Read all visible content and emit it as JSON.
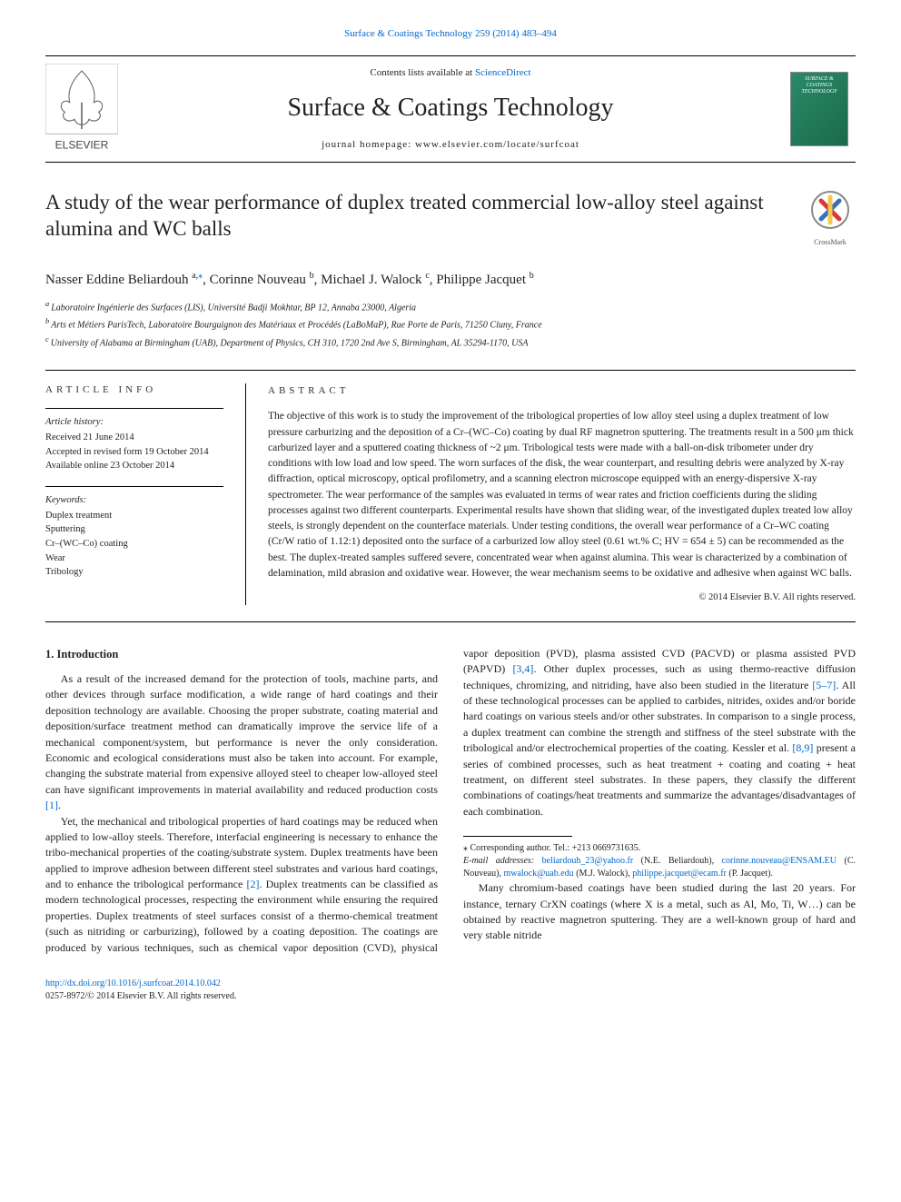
{
  "top_citation": "Surface & Coatings Technology 259 (2014) 483–494",
  "masthead": {
    "contents_prefix": "Contents lists available at ",
    "contents_link": "ScienceDirect",
    "journal_title": "Surface & Coatings Technology",
    "homepage_prefix": "journal homepage: ",
    "homepage_url": "www.elsevier.com/locate/surfcoat",
    "publisher_name": "ELSEVIER",
    "cover_text": "SURFACE & COATINGS TECHNOLOGY"
  },
  "article": {
    "title": "A study of the wear performance of duplex treated commercial low-alloy steel against alumina and WC balls",
    "crossmark_label": "CrossMark",
    "authors_html_parts": [
      {
        "name": "Nasser Eddine Beliardouh",
        "aff": "a,",
        "corr": true
      },
      {
        "name": "Corinne Nouveau",
        "aff": "b"
      },
      {
        "name": "Michael J. Walock",
        "aff": "c"
      },
      {
        "name": "Philippe Jacquet",
        "aff": "b"
      }
    ],
    "affiliations": [
      {
        "key": "a",
        "text": "Laboratoire Ingénierie des Surfaces (LIS), Université Badji Mokhtar, BP 12, Annaba 23000, Algeria"
      },
      {
        "key": "b",
        "text": "Arts et Métiers ParisTech, Laboratoire Bourguignon des Matériaux et Procédés (LaBoMaP), Rue Porte de Paris, 71250 Cluny, France"
      },
      {
        "key": "c",
        "text": "University of Alabama at Birmingham (UAB), Department of Physics, CH 310, 1720 2nd Ave S, Birmingham, AL 35294-1170, USA"
      }
    ]
  },
  "info": {
    "label": "article info",
    "history_title": "Article history:",
    "history": [
      "Received 21 June 2014",
      "Accepted in revised form 19 October 2014",
      "Available online 23 October 2014"
    ],
    "keywords_title": "Keywords:",
    "keywords": [
      "Duplex treatment",
      "Sputtering",
      "Cr–(WC–Co) coating",
      "Wear",
      "Tribology"
    ]
  },
  "abstract": {
    "label": "abstract",
    "text": "The objective of this work is to study the improvement of the tribological properties of low alloy steel using a duplex treatment of low pressure carburizing and the deposition of a Cr–(WC–Co) coating by dual RF magnetron sputtering. The treatments result in a 500 μm thick carburized layer and a sputtered coating thickness of ~2 μm. Tribological tests were made with a ball-on-disk tribometer under dry conditions with low load and low speed. The worn surfaces of the disk, the wear counterpart, and resulting debris were analyzed by X-ray diffraction, optical microscopy, optical profilometry, and a scanning electron microscope equipped with an energy-dispersive X-ray spectrometer. The wear performance of the samples was evaluated in terms of wear rates and friction coefficients during the sliding processes against two different counterparts. Experimental results have shown that sliding wear, of the investigated duplex treated low alloy steels, is strongly dependent on the counterface materials. Under testing conditions, the overall wear performance of a Cr–WC coating (Cr/W ratio of 1.12:1) deposited onto the surface of a carburized low alloy steel (0.61 wt.% C; HV = 654 ± 5) can be recommended as the best. The duplex-treated samples suffered severe, concentrated wear when against alumina. This wear is characterized by a combination of delamination, mild abrasion and oxidative wear. However, the wear mechanism seems to be oxidative and adhesive when against WC balls.",
    "copyright": "© 2014 Elsevier B.V. All rights reserved."
  },
  "body": {
    "heading": "1. Introduction",
    "p1": "As a result of the increased demand for the protection of tools, machine parts, and other devices through surface modification, a wide range of hard coatings and their deposition technology are available. Choosing the proper substrate, coating material and deposition/surface treatment method can dramatically improve the service life of a mechanical component/system, but performance is never the only consideration. Economic and ecological considerations must also be taken into account. For example, changing the substrate material from expensive alloyed steel to cheaper low-alloyed steel can have significant improvements in material availability and reduced production costs ",
    "p1_ref": "[1]",
    "p1_tail": ".",
    "p2": "Yet, the mechanical and tribological properties of hard coatings may be reduced when applied to low-alloy steels. Therefore, interfacial engineering is necessary to enhance the tribo-mechanical properties of the coating/substrate system. Duplex treatments have been applied to improve adhesion between different steel substrates and various hard coatings, and to enhance the tribological performance ",
    "p2_ref": "[2]",
    "p2_tail_a": ". Duplex treatments can be classified as modern technological processes, respecting the environment while ensuring the required properties. Duplex treatments of steel surfaces consist of a thermo-chemical treatment (such as nitriding or carburizing), followed by a coating deposition. The coatings are produced by various techniques, such as chemical vapor deposition (CVD), physical vapor deposition (PVD), plasma assisted CVD (PACVD) or plasma assisted PVD (PAPVD) ",
    "p2_ref2": "[3,4]",
    "p2_tail_b": ". Other duplex processes, such as using thermo-reactive diffusion techniques, chromizing, and nitriding, have also been studied in the literature ",
    "p2_ref3": "[5–7]",
    "p2_tail_c": ". All of these technological processes can be applied to carbides, nitrides, oxides and/or boride hard coatings on various steels and/or other substrates. In comparison to a single process, a duplex treatment can combine the strength and stiffness of the steel substrate with the tribological and/or electrochemical properties of the coating. Kessler et al. ",
    "p2_ref4": "[8,9]",
    "p2_tail_d": " present a series of combined processes, such as heat treatment + coating and coating + heat treatment, on different steel substrates. In these papers, they classify the different combinations of coatings/heat treatments and summarize the advantages/disadvantages of each combination.",
    "p3": "Many chromium-based coatings have been studied during the last 20 years. For instance, ternary CrXN coatings (where X is a metal, such as Al, Mo, Ti, W…) can be obtained by reactive magnetron sputtering. They are a well-known group of hard and very stable nitride"
  },
  "footnotes": {
    "corr_label": "⁎ Corresponding author. Tel.: +213 0669731635.",
    "email_label": "E-mail addresses: ",
    "emails": [
      {
        "addr": "beliardouh_23@yahoo.fr",
        "who": "(N.E. Beliardouh)"
      },
      {
        "addr": "corinne.nouveau@ENSAM.EU",
        "who": "(C. Nouveau)"
      },
      {
        "addr": "mwalock@uab.edu",
        "who": "(M.J. Walock)"
      },
      {
        "addr": "philippe.jacquet@ecam.fr",
        "who": "(P. Jacquet)."
      }
    ]
  },
  "footer": {
    "doi": "http://dx.doi.org/10.1016/j.surfcoat.2014.10.042",
    "issn_line": "0257-8972/© 2014 Elsevier B.V. All rights reserved."
  },
  "colors": {
    "link": "#0066cc",
    "text": "#222222",
    "rule": "#000000",
    "cover_grad_a": "#2a8a6a",
    "cover_grad_b": "#1a6a4a"
  }
}
